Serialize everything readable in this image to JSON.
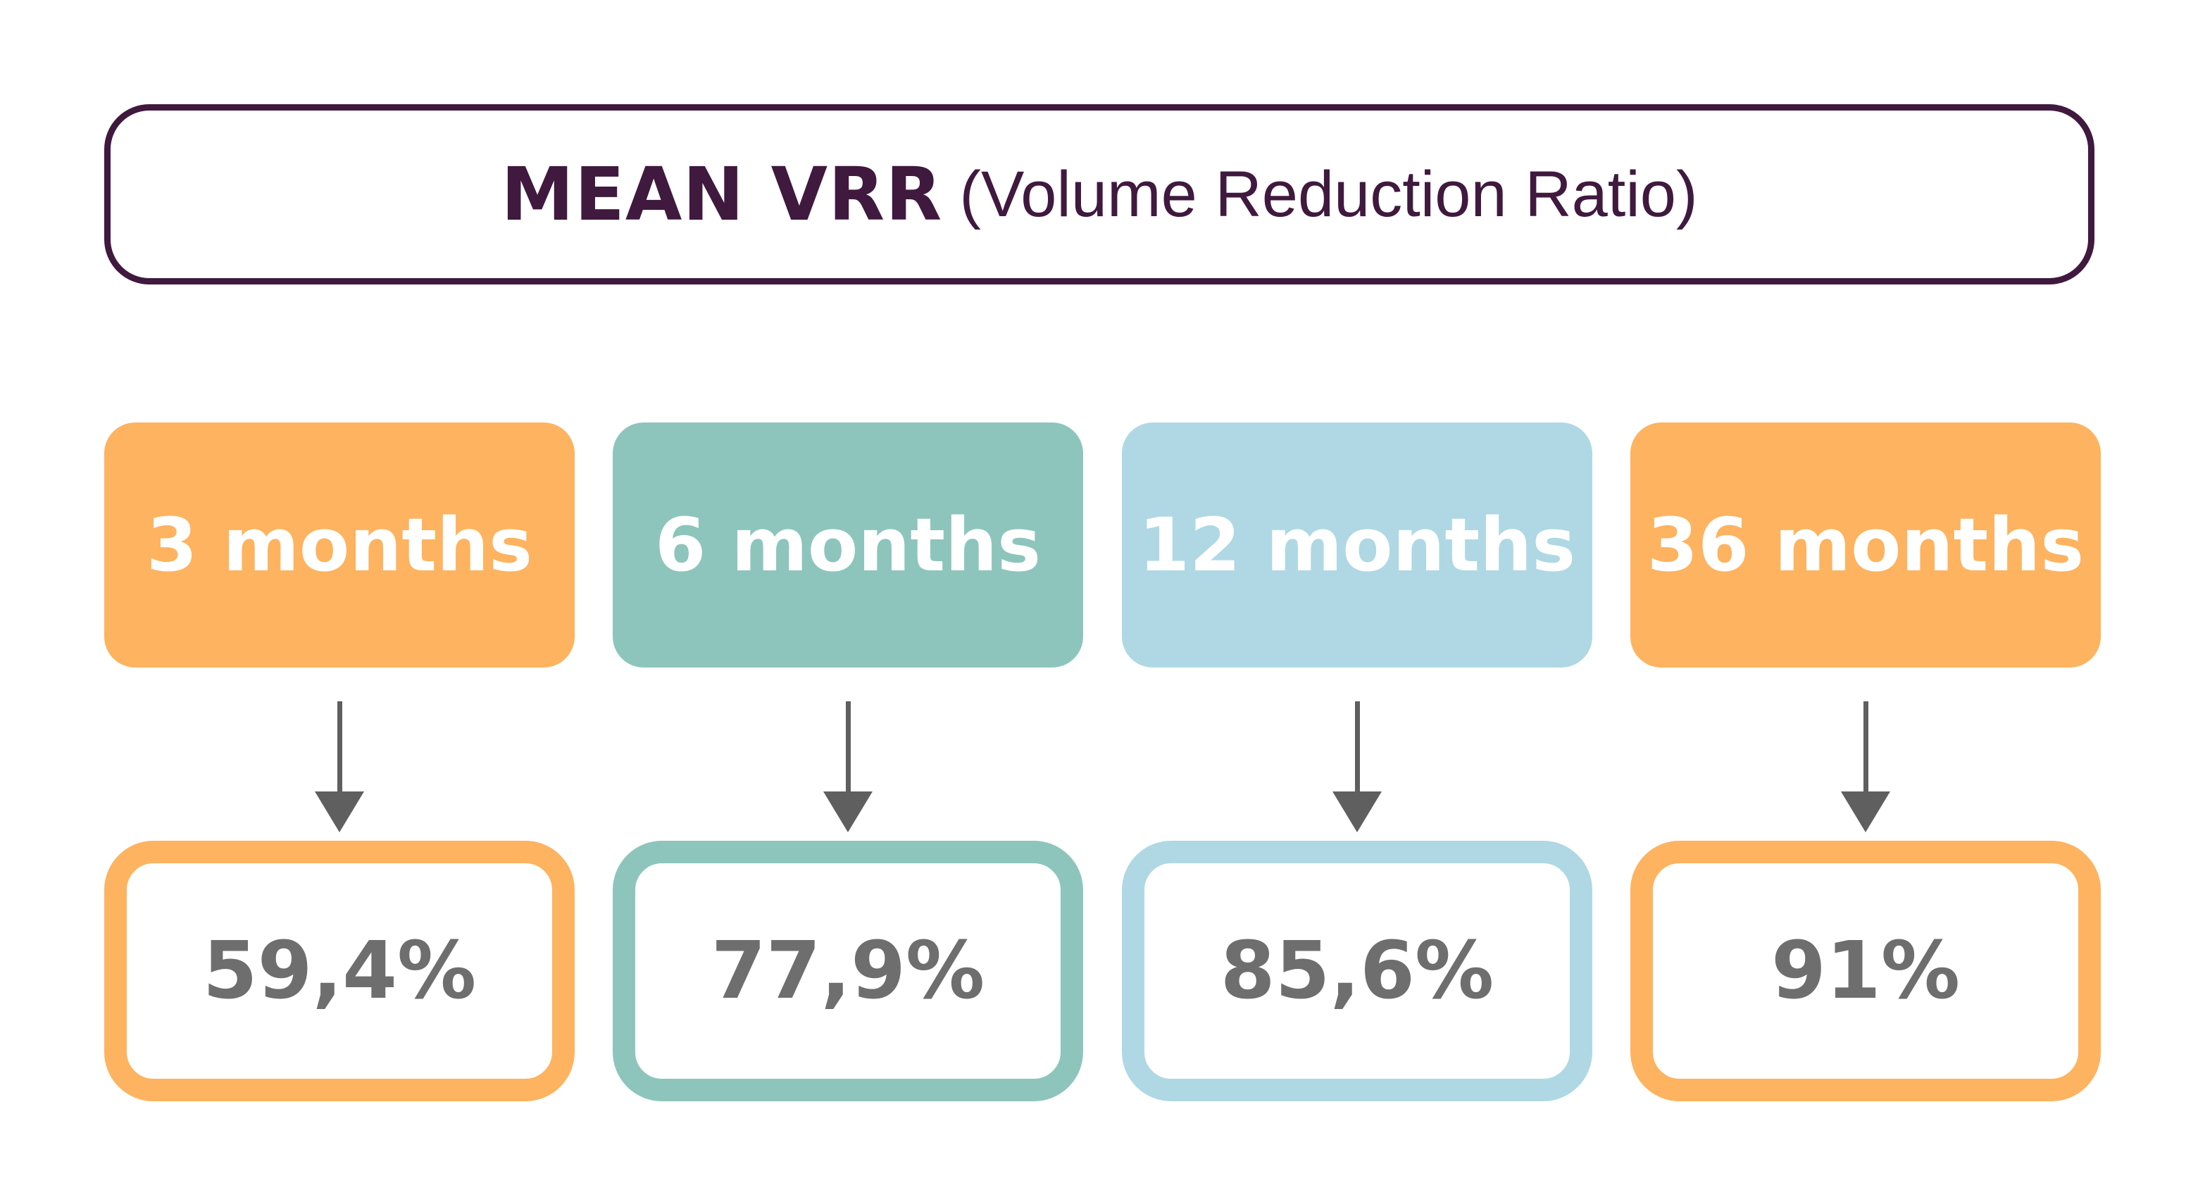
{
  "title": {
    "main": "MEAN VRR",
    "sub": "(Volume Reduction Ratio)",
    "color": "#40193f"
  },
  "columns": [
    {
      "period": "3 months",
      "value": "59,4%",
      "color": "#fdb35f"
    },
    {
      "period": "6 months",
      "value": "77,9%",
      "color": "#8dc5bd"
    },
    {
      "period": "12 months",
      "value": "85,6%",
      "color": "#afd8e4"
    },
    {
      "period": "36 months",
      "value": "91%",
      "color": "#fdb35f"
    }
  ],
  "colors": {
    "arrow": "#5f5f5f",
    "value_text": "#6e6e6e",
    "period_text": "#ffffff"
  }
}
